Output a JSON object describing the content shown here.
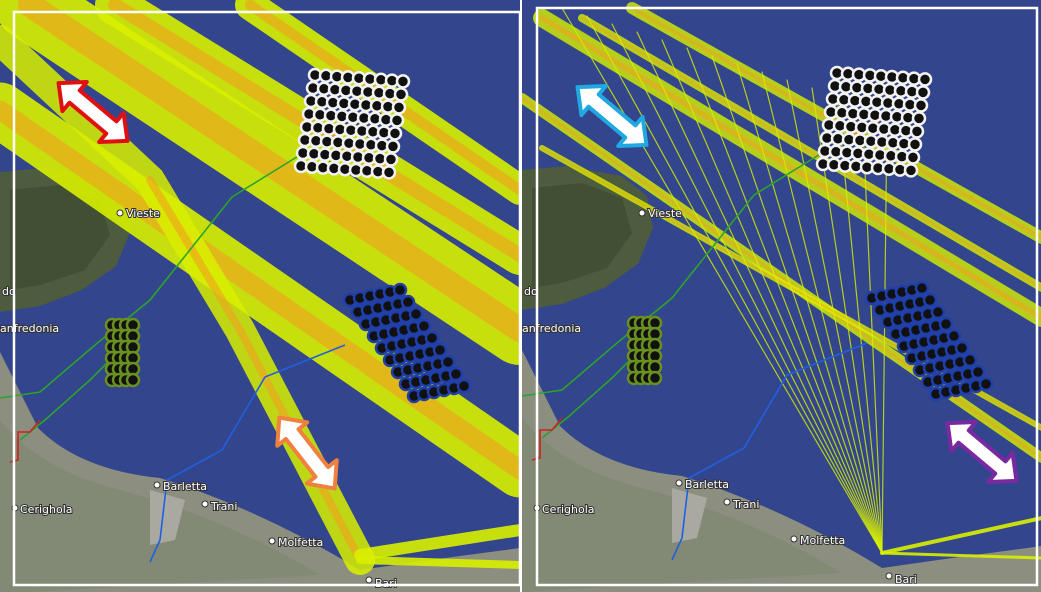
{
  "panels": [
    {
      "places": [
        "Vieste",
        "do",
        "anfredonia",
        "Barletta",
        "Trani",
        "Molfetta",
        "Cerighola",
        "Bari"
      ]
    },
    {
      "places": [
        "Vieste",
        "do",
        "anfredonia",
        "Barletta",
        "Trani",
        "Molfetta",
        "Cerighola",
        "Bari"
      ]
    }
  ]
}
